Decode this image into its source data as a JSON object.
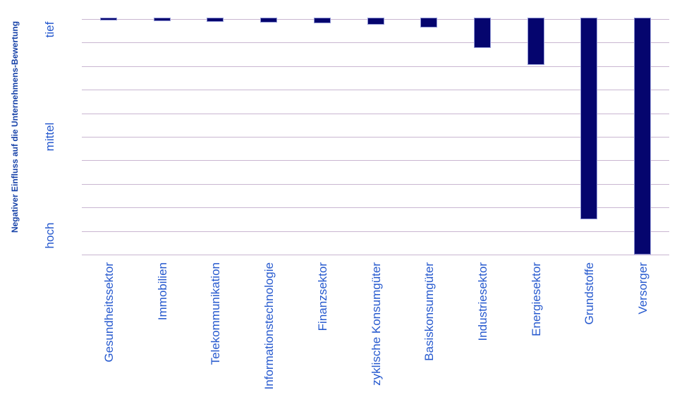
{
  "chart_data": {
    "type": "bar",
    "title": "",
    "ylabel": "Negativer Einfluss auf die Unternehmens-Bewertung",
    "xlabel": "",
    "orientation": "vertical, bars hang downward from top axis (inverted scale)",
    "y_axis": {
      "scale": "qualitative, 0 = tief (top) to 100 = hoch (bottom)",
      "range_pct": [
        0,
        100
      ],
      "ticks": [
        {
          "label": "tief",
          "pos_pct": 4.5
        },
        {
          "label": "mittel",
          "pos_pct": 50
        },
        {
          "label": "hoch",
          "pos_pct": 91.8
        }
      ],
      "gridline_count": 11,
      "grid_on": true
    },
    "categories": [
      "Gesundheitssektor",
      "Immobilien",
      "Telekommunikation",
      "Informationstechnologie",
      "Finanzsektor",
      "zyklische Konsumgüter",
      "Basiskonsumgüter",
      "Industriesektor",
      "Energiesektor",
      "Grundstoffe",
      "Versorger"
    ],
    "values_pct_of_max": [
      0.7,
      0.9,
      1.1,
      1.5,
      1.9,
      2.5,
      3.6,
      12.2,
      19.4,
      85,
      100
    ],
    "legend": null,
    "colors": {
      "bar_fill": "#05056e",
      "bar_stroke": "#9197d6",
      "gridline": "#c9b6d1",
      "tick_label": "#2659ce",
      "axis_title": "#1742a8",
      "background": "#ffffff"
    }
  }
}
